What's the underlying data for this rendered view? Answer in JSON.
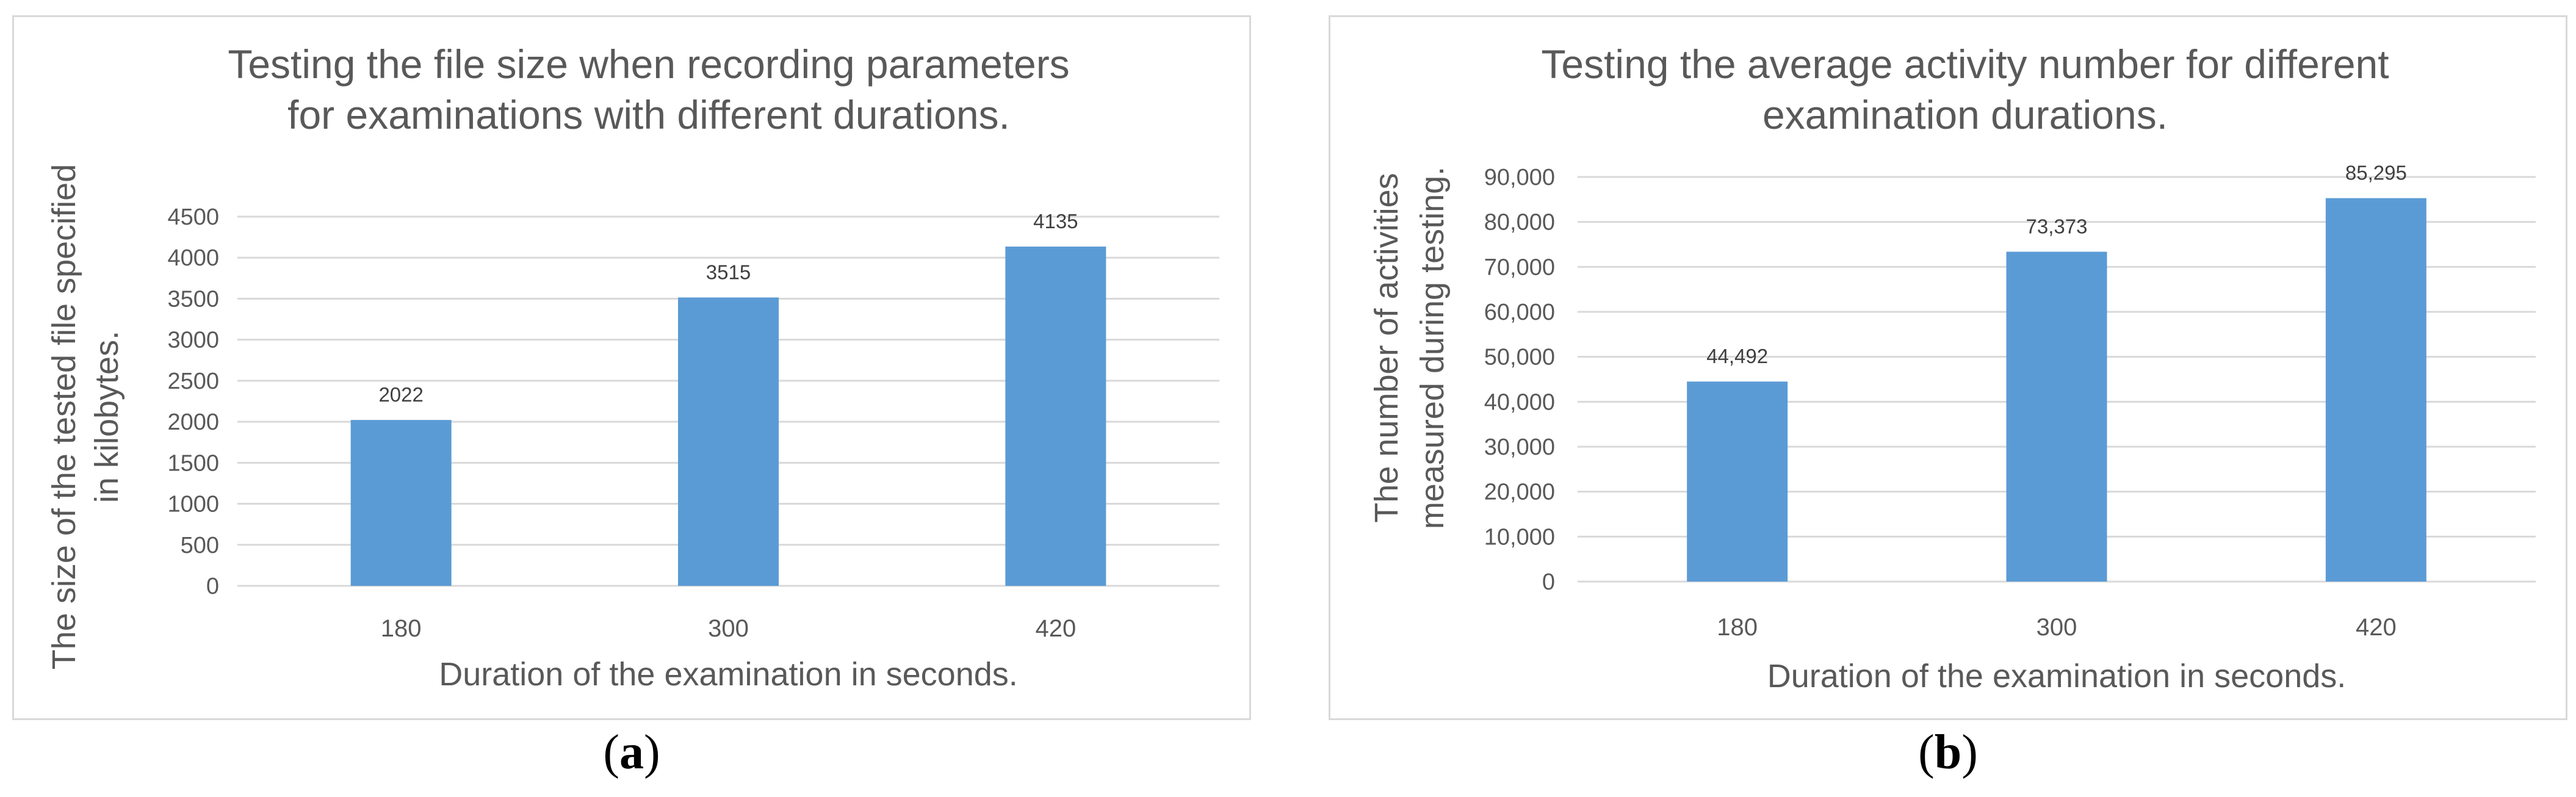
{
  "chart_data": [
    {
      "type": "bar",
      "title_lines": [
        "Testing the file size when recording parameters",
        "for examinations with different durations."
      ],
      "xlabel": "Duration of the examination in seconds.",
      "ylabel_lines": [
        "The size of the tested file specified",
        "in kilobytes."
      ],
      "categories": [
        "180",
        "300",
        "420"
      ],
      "values": [
        2022,
        3515,
        4135
      ],
      "data_labels": [
        "2022",
        "3515",
        "4135"
      ],
      "ylim": [
        0,
        4500
      ],
      "yticks": [
        0,
        500,
        1000,
        1500,
        2000,
        2500,
        3000,
        3500,
        4000,
        4500
      ],
      "ytick_labels": [
        "0",
        "500",
        "1000",
        "1500",
        "2000",
        "2500",
        "3000",
        "3500",
        "4000",
        "4500"
      ],
      "grid": true,
      "legend": false,
      "bar_color": "#5b9bd5"
    },
    {
      "type": "bar",
      "title_lines": [
        "Testing the average activity number for different",
        "examination durations."
      ],
      "xlabel": "Duration of the examination in seconds.",
      "ylabel_lines": [
        "The number of activities",
        "measured during testing."
      ],
      "categories": [
        "180",
        "300",
        "420"
      ],
      "values": [
        44492,
        73373,
        85295
      ],
      "data_labels": [
        "44,492",
        "73,373",
        "85,295"
      ],
      "ylim": [
        0,
        90000
      ],
      "yticks": [
        0,
        10000,
        20000,
        30000,
        40000,
        50000,
        60000,
        70000,
        80000,
        90000
      ],
      "ytick_labels": [
        "0",
        "10,000",
        "20,000",
        "30,000",
        "40,000",
        "50,000",
        "60,000",
        "70,000",
        "80,000",
        "90,000"
      ],
      "grid": true,
      "legend": false,
      "bar_color": "#5b9bd5"
    }
  ],
  "captions": {
    "a": {
      "open": "(",
      "letter": "a",
      "close": ")"
    },
    "b": {
      "open": "(",
      "letter": "b",
      "close": ")"
    }
  },
  "colors": {
    "bar": "#5b9bd5",
    "grid": "#d9d9d9",
    "text": "#595959",
    "border": "#d9d9d9"
  }
}
